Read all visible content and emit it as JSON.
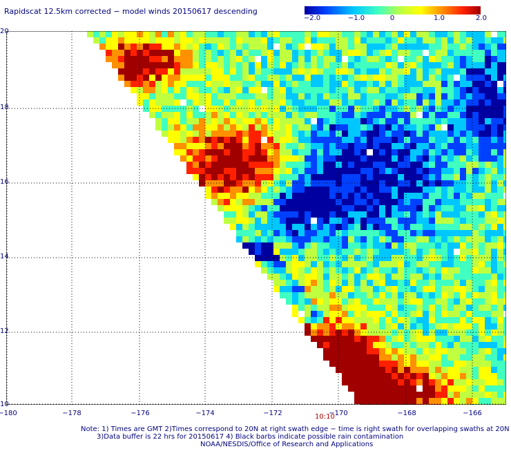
{
  "title": "Rapidscat 12.5km corrected − model winds 20150617 descending",
  "colorbar": {
    "ticks": [
      "−2.0",
      "−1.0",
      "0",
      "1.0",
      "2.0"
    ],
    "range": [
      -2.0,
      2.0
    ],
    "colors": [
      "#0000a0",
      "#0040ff",
      "#00c8ff",
      "#40ffc0",
      "#c0ff40",
      "#ffff00",
      "#ff9000",
      "#ff2000",
      "#a00000"
    ]
  },
  "map": {
    "lat_labels": [
      "20",
      "18",
      "16",
      "14",
      "12",
      "10"
    ],
    "lon_labels": [
      "−180",
      "−178",
      "−176",
      "−174",
      "−172",
      "−170",
      "−168",
      "−166"
    ],
    "lon_range": [
      -180,
      -164.8
    ],
    "lat_range": [
      10,
      20
    ],
    "time_label": "10:10"
  },
  "notes": {
    "line1": "Note: 1) Times are GMT 2)Times correspond to 20N at right swath edge − time is right swath for overlapping swaths at 20N",
    "line2": "3)Data buffer is 22 hrs for 20150617 4) Black barbs indicate possible rain contamination",
    "line3": "NOAA/NESDIS/Office of Research and Applications"
  }
}
